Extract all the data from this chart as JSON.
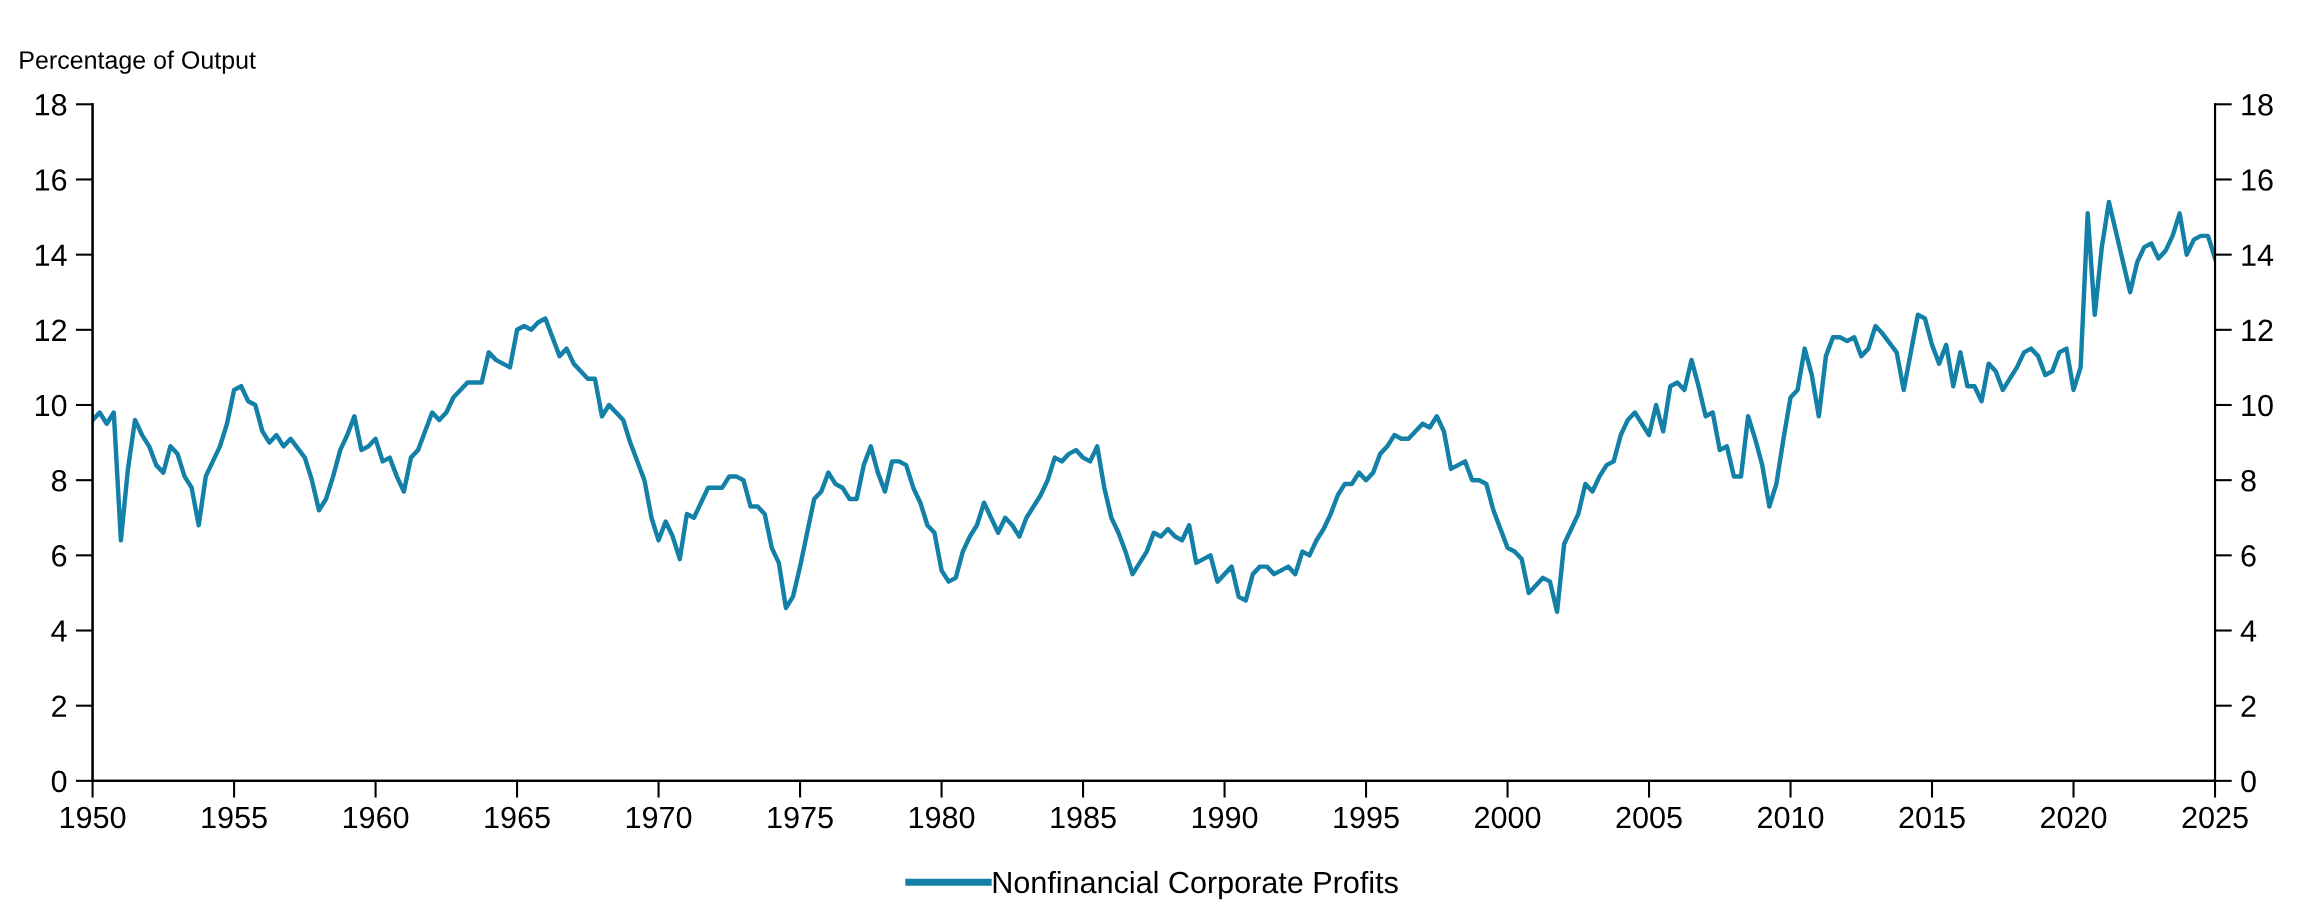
{
  "chart_data": {
    "type": "line",
    "ylabel": "Percentage of Output",
    "x": [
      1950.0,
      1950.25,
      1950.5,
      1950.75,
      1951.0,
      1951.25,
      1951.5,
      1951.75,
      1952.0,
      1952.25,
      1952.5,
      1952.75,
      1953.0,
      1953.25,
      1953.5,
      1953.75,
      1954.0,
      1954.5,
      1954.75,
      1955.0,
      1955.25,
      1955.5,
      1955.75,
      1956.0,
      1956.25,
      1956.5,
      1956.75,
      1957.0,
      1957.5,
      1957.75,
      1958.0,
      1958.25,
      1958.5,
      1958.75,
      1959.0,
      1959.25,
      1959.5,
      1959.75,
      1960.0,
      1960.25,
      1960.5,
      1960.75,
      1961.0,
      1961.25,
      1961.5,
      1961.75,
      1962.0,
      1962.25,
      1962.5,
      1962.75,
      1963.0,
      1963.25,
      1963.5,
      1963.75,
      1964.0,
      1964.25,
      1964.5,
      1964.75,
      1965.0,
      1965.25,
      1965.5,
      1965.75,
      1966.0,
      1966.25,
      1966.5,
      1966.75,
      1967.0,
      1967.25,
      1967.5,
      1967.75,
      1968.0,
      1968.25,
      1968.5,
      1968.75,
      1969.0,
      1969.5,
      1969.75,
      1970.0,
      1970.25,
      1970.5,
      1970.75,
      1971.0,
      1971.25,
      1971.5,
      1971.75,
      1972.0,
      1972.25,
      1972.5,
      1972.75,
      1973.0,
      1973.25,
      1973.5,
      1973.75,
      1974.0,
      1974.25,
      1974.5,
      1974.75,
      1975.0,
      1975.25,
      1975.5,
      1975.75,
      1976.0,
      1976.25,
      1976.5,
      1976.75,
      1977.0,
      1977.25,
      1977.5,
      1977.75,
      1978.0,
      1978.25,
      1978.5,
      1978.75,
      1979.0,
      1979.25,
      1979.5,
      1979.75,
      1980.0,
      1980.25,
      1980.5,
      1980.75,
      1981.0,
      1981.25,
      1981.5,
      1981.75,
      1982.0,
      1982.25,
      1982.5,
      1982.75,
      1983.0,
      1983.25,
      1983.5,
      1983.75,
      1984.0,
      1984.25,
      1984.5,
      1984.75,
      1985.0,
      1985.25,
      1985.5,
      1985.75,
      1986.0,
      1986.25,
      1986.5,
      1986.75,
      1987.0,
      1987.25,
      1987.5,
      1987.75,
      1988.0,
      1988.25,
      1988.5,
      1988.75,
      1989.0,
      1989.25,
      1989.5,
      1989.75,
      1990.0,
      1990.25,
      1990.5,
      1990.75,
      1991.0,
      1991.25,
      1991.5,
      1991.75,
      1992.0,
      1992.25,
      1992.5,
      1992.75,
      1993.0,
      1993.25,
      1993.5,
      1993.75,
      1994.0,
      1994.25,
      1994.5,
      1994.75,
      1995.0,
      1995.25,
      1995.5,
      1995.75,
      1996.0,
      1996.25,
      1996.5,
      1996.75,
      1997.0,
      1997.25,
      1997.5,
      1997.75,
      1998.0,
      1998.25,
      1998.5,
      1998.75,
      1999.0,
      1999.25,
      1999.5,
      1999.75,
      2000.0,
      2000.25,
      2000.5,
      2000.75,
      2001.0,
      2001.25,
      2001.5,
      2001.75,
      2002.0,
      2002.25,
      2002.5,
      2002.75,
      2003.0,
      2003.25,
      2003.5,
      2003.75,
      2004.0,
      2004.25,
      2004.5,
      2004.75,
      2005.0,
      2005.25,
      2005.5,
      2005.75,
      2006.0,
      2006.25,
      2006.5,
      2006.75,
      2007.0,
      2007.25,
      2007.5,
      2007.75,
      2008.0,
      2008.25,
      2008.5,
      2008.75,
      2009.0,
      2009.25,
      2009.5,
      2009.75,
      2010.0,
      2010.25,
      2010.5,
      2010.75,
      2011.0,
      2011.25,
      2011.5,
      2011.75,
      2012.0,
      2012.25,
      2012.5,
      2012.75,
      2013.0,
      2013.25,
      2013.75,
      2014.0,
      2014.5,
      2014.75,
      2015.0,
      2015.25,
      2015.5,
      2015.75,
      2016.0,
      2016.25,
      2016.5,
      2016.75,
      2017.0,
      2017.25,
      2017.5,
      2017.75,
      2018.0,
      2018.25,
      2018.5,
      2018.75,
      2019.0,
      2019.25,
      2019.5,
      2019.75,
      2020.0,
      2020.25,
      2020.5,
      2020.75,
      2021.0,
      2021.25,
      2021.5,
      2021.75,
      2022.0,
      2022.25,
      2022.5,
      2022.75,
      2023.0,
      2023.25,
      2023.5,
      2023.75,
      2024.0,
      2024.25,
      2024.5,
      2024.75,
      2025.0
    ],
    "series": [
      {
        "name": "Nonfinancial Corporate Profits",
        "color": "#1380a8",
        "values": [
          9.6,
          9.8,
          9.5,
          9.8,
          6.4,
          8.3,
          9.6,
          9.2,
          8.9,
          8.4,
          8.2,
          8.9,
          8.7,
          8.1,
          7.8,
          6.8,
          8.1,
          8.9,
          9.5,
          10.4,
          10.5,
          10.1,
          10.0,
          9.3,
          9.0,
          9.2,
          8.9,
          9.1,
          8.6,
          8.0,
          7.2,
          7.5,
          8.1,
          8.8,
          9.2,
          9.7,
          8.8,
          8.9,
          9.1,
          8.5,
          8.6,
          8.1,
          7.7,
          8.6,
          8.8,
          9.3,
          9.8,
          9.6,
          9.8,
          10.2,
          10.4,
          10.6,
          10.6,
          10.6,
          11.4,
          11.2,
          11.1,
          11.0,
          12.0,
          12.1,
          12.0,
          12.2,
          12.3,
          11.8,
          11.3,
          11.5,
          11.1,
          10.9,
          10.7,
          10.7,
          9.7,
          10.0,
          9.8,
          9.6,
          9.0,
          8.0,
          7.0,
          6.4,
          6.9,
          6.5,
          5.9,
          7.1,
          7.0,
          7.4,
          7.8,
          7.8,
          7.8,
          8.1,
          8.1,
          8.0,
          7.3,
          7.3,
          7.1,
          6.2,
          5.8,
          4.6,
          4.9,
          5.7,
          6.6,
          7.5,
          7.7,
          8.2,
          7.9,
          7.8,
          7.5,
          7.5,
          8.4,
          8.9,
          8.2,
          7.7,
          8.5,
          8.5,
          8.4,
          7.8,
          7.4,
          6.8,
          6.6,
          5.6,
          5.3,
          5.4,
          6.1,
          6.5,
          6.8,
          7.4,
          7.0,
          6.6,
          7.0,
          6.8,
          6.5,
          7.0,
          7.3,
          7.6,
          8.0,
          8.6,
          8.5,
          8.7,
          8.8,
          8.6,
          8.5,
          8.9,
          7.8,
          7.0,
          6.6,
          6.1,
          5.5,
          5.8,
          6.1,
          6.6,
          6.5,
          6.7,
          6.5,
          6.4,
          6.8,
          5.8,
          5.9,
          6.0,
          5.3,
          5.5,
          5.7,
          4.9,
          4.8,
          5.5,
          5.7,
          5.7,
          5.5,
          5.6,
          5.7,
          5.5,
          6.1,
          6.0,
          6.4,
          6.7,
          7.1,
          7.6,
          7.9,
          7.9,
          8.2,
          8.0,
          8.2,
          8.7,
          8.9,
          9.2,
          9.1,
          9.1,
          9.3,
          9.5,
          9.4,
          9.7,
          9.3,
          8.3,
          8.4,
          8.5,
          8.0,
          8.0,
          7.9,
          7.2,
          6.7,
          6.2,
          6.1,
          5.9,
          5.0,
          5.2,
          5.4,
          5.3,
          4.5,
          6.3,
          6.7,
          7.1,
          7.9,
          7.7,
          8.1,
          8.4,
          8.5,
          9.2,
          9.6,
          9.8,
          9.5,
          9.2,
          10.0,
          9.3,
          10.5,
          10.6,
          10.4,
          11.2,
          10.5,
          9.7,
          9.8,
          8.8,
          8.9,
          8.1,
          8.1,
          9.7,
          9.1,
          8.4,
          7.3,
          7.9,
          9.1,
          10.2,
          10.4,
          11.5,
          10.8,
          9.7,
          11.3,
          11.8,
          11.8,
          11.7,
          11.8,
          11.3,
          11.5,
          12.1,
          11.9,
          11.4,
          10.4,
          12.4,
          12.3,
          11.6,
          11.1,
          11.6,
          10.5,
          11.4,
          10.5,
          10.5,
          10.1,
          11.1,
          10.9,
          10.4,
          10.7,
          11.0,
          11.4,
          11.5,
          11.3,
          10.8,
          10.9,
          11.4,
          11.5,
          10.4,
          11.0,
          15.1,
          12.4,
          14.2,
          15.4,
          14.6,
          13.8,
          13.0,
          13.8,
          14.2,
          14.3,
          13.9,
          14.1,
          14.5,
          15.1,
          14.0,
          14.4,
          14.5,
          14.5,
          13.9
        ]
      }
    ],
    "xlim": [
      1950,
      2025
    ],
    "xticks": [
      1950,
      1955,
      1960,
      1965,
      1970,
      1975,
      1980,
      1985,
      1990,
      1995,
      2000,
      2005,
      2010,
      2015,
      2020,
      2025
    ],
    "ylim": [
      0,
      18
    ],
    "yticks": [
      0,
      2,
      4,
      6,
      8,
      10,
      12,
      14,
      16,
      18
    ],
    "y2lim": [
      0,
      18
    ],
    "y2ticks": [
      0,
      2,
      4,
      6,
      8,
      10,
      12,
      14,
      16,
      18
    ],
    "grid": false,
    "legend": "bottom",
    "line_style": "solid",
    "marker": "none"
  }
}
